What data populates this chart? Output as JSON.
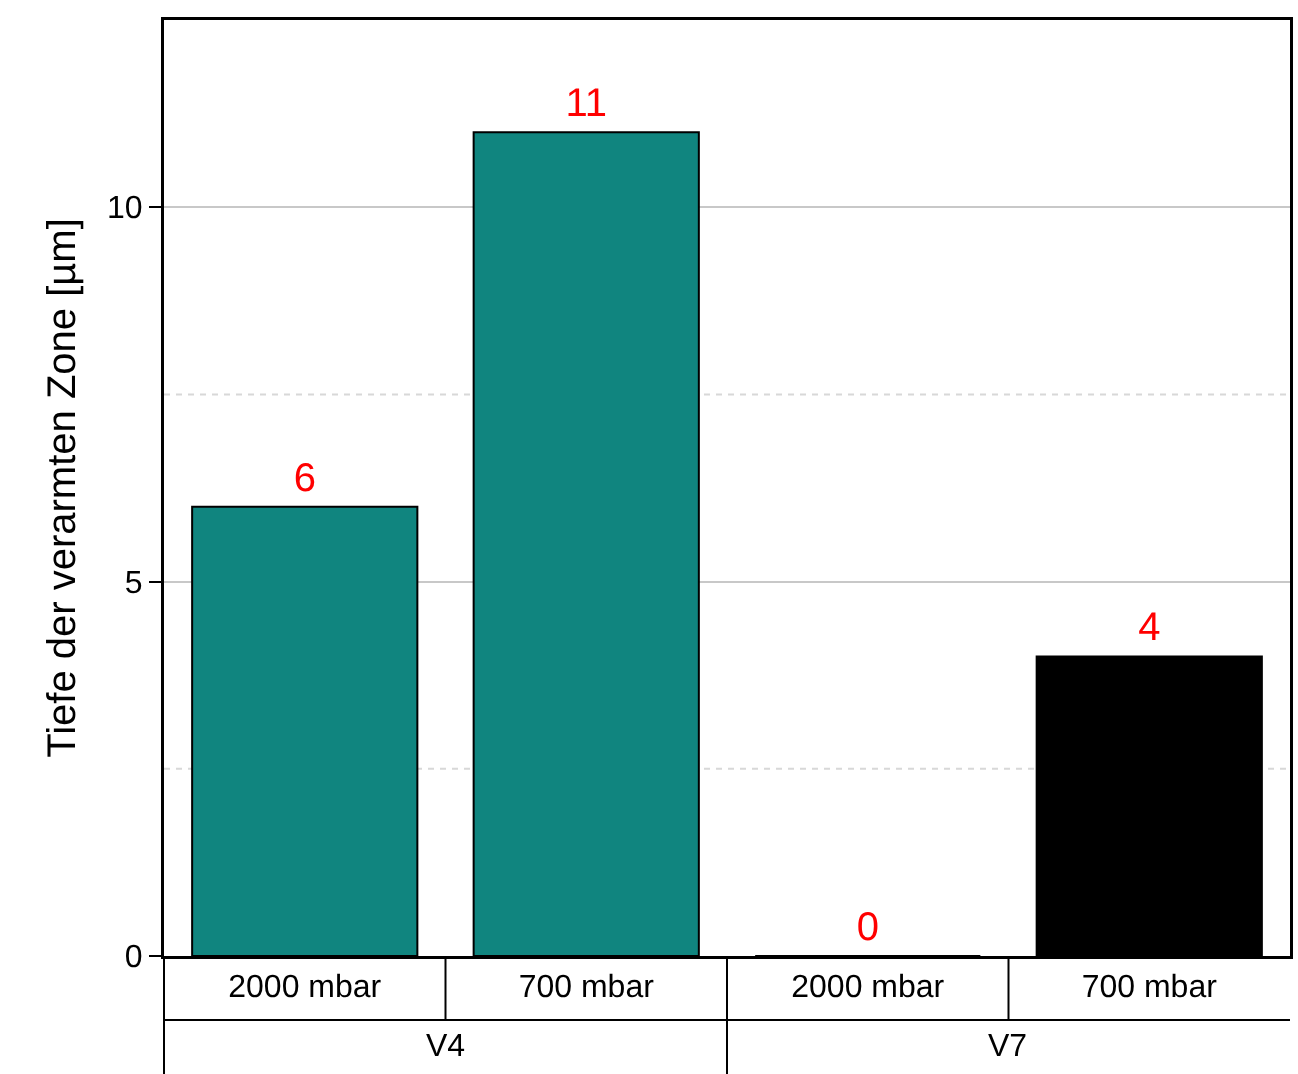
{
  "chart_data": {
    "type": "bar",
    "ylabel": "Tiefe der verarmten Zone [µm]",
    "categories": [
      "2000 mbar",
      "700 mbar",
      "2000 mbar",
      "700 mbar"
    ],
    "values": [
      6,
      11,
      0,
      4
    ],
    "colors": [
      "#10857f",
      "#10857f",
      "#000000",
      "#000000"
    ],
    "data_labels": true,
    "ylim": [
      0,
      12.5
    ],
    "yticks": [
      0,
      {
        "value": 2.5,
        "label": null
      },
      5,
      {
        "value": 7.5,
        "label": null
      },
      10
    ],
    "grid": "y",
    "annotations": [
      "V4",
      "V7"
    ]
  }
}
